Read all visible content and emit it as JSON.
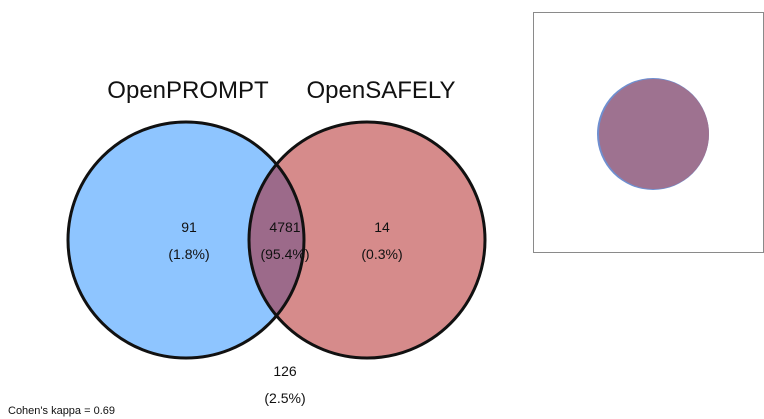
{
  "venn": {
    "sets": [
      {
        "label": "OpenPROMPT",
        "color": "#8ec5ff"
      },
      {
        "label": "OpenSAFELY",
        "color": "#d68b8b"
      }
    ],
    "overlap_color": "#9c6a8a",
    "regions": {
      "openprompt_only": {
        "count": "91",
        "percent": "(1.8%)"
      },
      "both": {
        "count": "4781",
        "percent": "(95.4%)"
      },
      "opensafely_only": {
        "count": "14",
        "percent": "(0.3%)"
      },
      "neither": {
        "count": "126",
        "percent": "(2.5%)"
      }
    },
    "kappa_text": "Cohen's kappa = 0.69"
  },
  "inset": {
    "circle_color": "#9e7290",
    "circle_edge_color": "#6f8fd0"
  }
}
